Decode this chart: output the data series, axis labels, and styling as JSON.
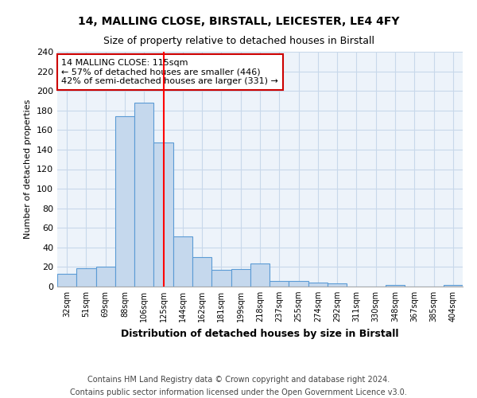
{
  "title1": "14, MALLING CLOSE, BIRSTALL, LEICESTER, LE4 4FY",
  "title2": "Size of property relative to detached houses in Birstall",
  "xlabel": "Distribution of detached houses by size in Birstall",
  "ylabel": "Number of detached properties",
  "categories": [
    "32sqm",
    "51sqm",
    "69sqm",
    "88sqm",
    "106sqm",
    "125sqm",
    "144sqm",
    "162sqm",
    "181sqm",
    "199sqm",
    "218sqm",
    "237sqm",
    "255sqm",
    "274sqm",
    "292sqm",
    "311sqm",
    "330sqm",
    "348sqm",
    "367sqm",
    "385sqm",
    "404sqm"
  ],
  "values": [
    13,
    19,
    20,
    174,
    188,
    147,
    51,
    30,
    17,
    18,
    24,
    6,
    6,
    4,
    3,
    0,
    0,
    2,
    0,
    0,
    2
  ],
  "bar_color": "#c5d8ed",
  "bar_edge_color": "#5b9bd5",
  "red_line_x": 5.0,
  "annotation_line1": "14 MALLING CLOSE: 115sqm",
  "annotation_line2": "← 57% of detached houses are smaller (446)",
  "annotation_line3": "42% of semi-detached houses are larger (331) →",
  "annotation_box_color": "#ffffff",
  "annotation_box_edge": "#cc0000",
  "footnote1": "Contains HM Land Registry data © Crown copyright and database right 2024.",
  "footnote2": "Contains public sector information licensed under the Open Government Licence v3.0.",
  "ylim": [
    0,
    240
  ],
  "yticks": [
    0,
    20,
    40,
    60,
    80,
    100,
    120,
    140,
    160,
    180,
    200,
    220,
    240
  ]
}
